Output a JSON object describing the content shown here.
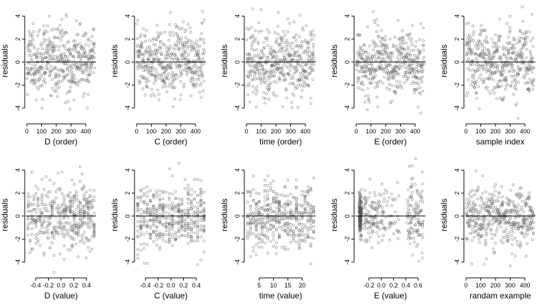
{
  "figure": {
    "point_color": "#555555",
    "reference_line_color": "#000000",
    "background": "#ffffff"
  },
  "chart_data": [
    {
      "type": "scatter",
      "xlabel": "D (order)",
      "ylabel": "residuals",
      "xlim": [
        -5,
        470
      ],
      "ylim": [
        -5.2,
        5.4
      ],
      "xticks": [
        0,
        100,
        200,
        300,
        400
      ],
      "xticklabels": [
        "0",
        "100",
        "200",
        "300",
        "400"
      ],
      "yticks": [
        -4,
        -2,
        0,
        2,
        4
      ],
      "yticklabels": [
        "-4",
        "-2",
        "0",
        "2",
        "4"
      ],
      "hline": 0,
      "grid": false,
      "points": {
        "n": 460,
        "seed": 11,
        "mode": "order",
        "x_min": 1,
        "x_max": 460,
        "sd": 1.4,
        "amp": 0.55,
        "freq": 4.2,
        "phase": 0.3
      }
    },
    {
      "type": "scatter",
      "xlabel": "C (order)",
      "ylabel": "residuals",
      "xlim": [
        -5,
        470
      ],
      "ylim": [
        -5.2,
        5.4
      ],
      "xticks": [
        0,
        100,
        200,
        300,
        400
      ],
      "xticklabels": [
        "0",
        "100",
        "200",
        "300",
        "400"
      ],
      "yticks": [
        -4,
        -2,
        0,
        2,
        4
      ],
      "yticklabels": [
        "-4",
        "-2",
        "0",
        "2",
        "4"
      ],
      "hline": 0,
      "grid": false,
      "points": {
        "n": 460,
        "seed": 23,
        "mode": "order",
        "x_min": 1,
        "x_max": 460,
        "sd": 1.45,
        "amp": 0.45,
        "freq": 3.1,
        "phase": 1.4
      }
    },
    {
      "type": "scatter",
      "xlabel": "time (order)",
      "ylabel": "residuals",
      "xlim": [
        -5,
        470
      ],
      "ylim": [
        -5.2,
        5.4
      ],
      "xticks": [
        0,
        100,
        200,
        300,
        400
      ],
      "xticklabels": [
        "0",
        "100",
        "200",
        "300",
        "400"
      ],
      "yticks": [
        -4,
        -2,
        0,
        2,
        4
      ],
      "yticklabels": [
        "-4",
        "-2",
        "0",
        "2",
        "4"
      ],
      "hline": 0,
      "grid": false,
      "points": {
        "n": 460,
        "seed": 37,
        "mode": "order",
        "x_min": 1,
        "x_max": 460,
        "sd": 1.5,
        "amp": 0.3,
        "freq": 2.0,
        "phase": 0.8
      }
    },
    {
      "type": "scatter",
      "xlabel": "E (order)",
      "ylabel": "residuals",
      "xlim": [
        -5,
        470
      ],
      "ylim": [
        -5.2,
        5.4
      ],
      "xticks": [
        0,
        100,
        200,
        300,
        400
      ],
      "xticklabels": [
        "0",
        "100",
        "200",
        "300",
        "400"
      ],
      "yticks": [
        -4,
        -2,
        0,
        2,
        4
      ],
      "yticklabels": [
        "-4",
        "-2",
        "0",
        "2",
        "4"
      ],
      "hline": 0,
      "grid": false,
      "points": {
        "n": 460,
        "seed": 41,
        "mode": "order",
        "x_min": 1,
        "x_max": 460,
        "sd": 1.35,
        "amp": 0.7,
        "freq": 2.6,
        "phase": 2.2
      }
    },
    {
      "type": "scatter",
      "xlabel": "sample index",
      "ylabel": "residuals",
      "xlim": [
        -5,
        470
      ],
      "ylim": [
        -5.2,
        5.4
      ],
      "xticks": [
        0,
        100,
        200,
        300,
        400
      ],
      "xticklabels": [
        "0",
        "100",
        "200",
        "300",
        "400"
      ],
      "yticks": [
        -4,
        -2,
        0,
        2,
        4
      ],
      "yticklabels": [
        "-4",
        "-2",
        "0",
        "2",
        "4"
      ],
      "hline": 0,
      "grid": false,
      "points": {
        "n": 460,
        "seed": 53,
        "mode": "order",
        "x_min": 1,
        "x_max": 460,
        "sd": 1.4,
        "amp": 0.6,
        "freq": 5.0,
        "phase": 0.1
      }
    },
    {
      "type": "scatter",
      "xlabel": "D (value)",
      "ylabel": "residuals",
      "xlim": [
        -0.55,
        0.55
      ],
      "ylim": [
        -5.2,
        5.4
      ],
      "xticks": [
        -0.4,
        -0.2,
        0,
        0.2,
        0.4
      ],
      "xticklabels": [
        "-0.4",
        "-0.2",
        "0.0",
        "0.2",
        "0.4"
      ],
      "yticks": [
        -4,
        -2,
        0,
        2,
        4
      ],
      "yticklabels": [
        "-4",
        "-2",
        "0",
        "2",
        "4"
      ],
      "hline": 0,
      "grid": false,
      "points": {
        "n": 460,
        "seed": 67,
        "mode": "columns",
        "x_min": -0.52,
        "x_max": 0.52,
        "columns": 34,
        "sd": 1.35
      }
    },
    {
      "type": "scatter",
      "xlabel": "C (value)",
      "ylabel": "residuals",
      "xlim": [
        -0.55,
        0.55
      ],
      "ylim": [
        -5.2,
        5.4
      ],
      "xticks": [
        -0.4,
        -0.2,
        0,
        0.2,
        0.4
      ],
      "xticklabels": [
        "-0.4",
        "-0.2",
        "0.0",
        "0.2",
        "0.4"
      ],
      "yticks": [
        -4,
        -2,
        0,
        2,
        4
      ],
      "yticklabels": [
        "-4",
        "-2",
        "0",
        "2",
        "4"
      ],
      "hline": 0,
      "grid": false,
      "points": {
        "n": 460,
        "seed": 71,
        "mode": "columns",
        "x_min": -0.52,
        "x_max": 0.52,
        "columns": 22,
        "sd": 1.4
      }
    },
    {
      "type": "scatter",
      "xlabel": "time (value)",
      "ylabel": "residuals",
      "xlim": [
        0.3,
        24.7
      ],
      "ylim": [
        -5.2,
        5.4
      ],
      "xticks": [
        5,
        10,
        15,
        20
      ],
      "xticklabels": [
        "5",
        "10",
        "15",
        "20"
      ],
      "yticks": [
        -4,
        -2,
        0,
        2,
        4
      ],
      "yticklabels": [
        "-4",
        "-2",
        "0",
        "2",
        "4"
      ],
      "hline": 0,
      "grid": false,
      "points": {
        "n": 460,
        "seed": 83,
        "mode": "columns",
        "x_min": 1,
        "x_max": 24,
        "columns": 24,
        "sd": 1.45
      }
    },
    {
      "type": "scatter",
      "xlabel": "E (value)",
      "ylabel": "residuals",
      "xlim": [
        -0.42,
        0.72
      ],
      "ylim": [
        -5.2,
        5.4
      ],
      "xticks": [
        -0.2,
        0,
        0.2,
        0.4,
        0.6
      ],
      "xticklabels": [
        "-0.2",
        "0.0",
        "0.2",
        "0.4",
        "0.6"
      ],
      "yticks": [
        -4,
        -2,
        0,
        2,
        4
      ],
      "yticklabels": [
        "-4",
        "-2",
        "0",
        "2",
        "4"
      ],
      "hline": 0,
      "grid": false,
      "points": {
        "n": 460,
        "seed": 97,
        "mode": "clustered",
        "x_min": -0.38,
        "x_max": 0.68,
        "sd": 1.4
      }
    },
    {
      "type": "scatter",
      "xlabel": "randam example",
      "ylabel": "residuals",
      "xlim": [
        -5,
        470
      ],
      "ylim": [
        -5.2,
        5.4
      ],
      "xticks": [
        0,
        100,
        200,
        300,
        400
      ],
      "xticklabels": [
        "0",
        "100",
        "200",
        "300",
        "400"
      ],
      "yticks": [
        -4,
        -2,
        0,
        2,
        4
      ],
      "yticklabels": [
        "-4",
        "-2",
        "0",
        "2",
        "4"
      ],
      "hline": 0,
      "grid": false,
      "points": {
        "n": 460,
        "seed": 109,
        "mode": "order",
        "x_min": 1,
        "x_max": 460,
        "sd": 1.3,
        "amp": 0.0,
        "freq": 1.0,
        "phase": 0.0
      }
    }
  ]
}
